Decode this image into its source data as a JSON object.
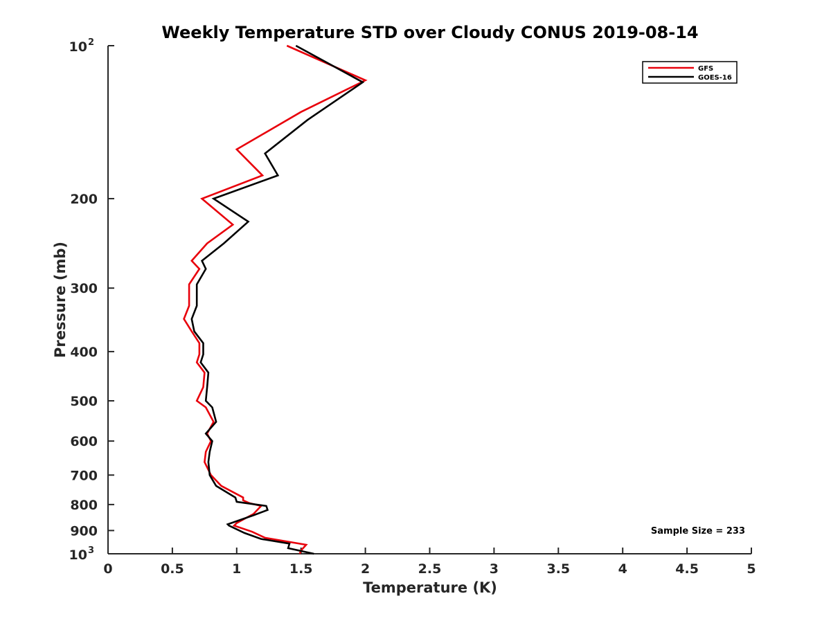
{
  "chart_data": {
    "type": "line",
    "title": "Weekly Temperature STD over Cloudy CONUS 2019-08-14",
    "xlabel": "Temperature (K)",
    "ylabel": "Pressure (mb)",
    "xlim": [
      0,
      5
    ],
    "ylim": [
      100,
      1000
    ],
    "y_scale": "log",
    "y_reversed": true,
    "grid": false,
    "legend_position": "top-right",
    "x_ticks": [
      "0",
      "0.5",
      "1",
      "1.5",
      "2",
      "2.5",
      "3",
      "3.5",
      "4",
      "4.5",
      "5"
    ],
    "y_ticks": [
      {
        "value": 100,
        "base": "10",
        "exp": "2"
      },
      {
        "value": 200,
        "label": "200"
      },
      {
        "value": 300,
        "label": "300"
      },
      {
        "value": 400,
        "label": "400"
      },
      {
        "value": 500,
        "label": "500"
      },
      {
        "value": 600,
        "label": "600"
      },
      {
        "value": 700,
        "label": "700"
      },
      {
        "value": 800,
        "label": "800"
      },
      {
        "value": 900,
        "label": "900"
      },
      {
        "value": 1000,
        "base": "10",
        "exp": "3"
      }
    ],
    "annotation": "Sample Size = 233",
    "series": [
      {
        "name": "GFS",
        "color": "#e8000b",
        "points": [
          [
            1.39,
            100
          ],
          [
            2.0,
            117
          ],
          [
            1.5,
            135
          ],
          [
            1.0,
            160
          ],
          [
            1.2,
            180
          ],
          [
            0.73,
            200
          ],
          [
            0.97,
            225
          ],
          [
            0.77,
            245
          ],
          [
            0.65,
            265
          ],
          [
            0.71,
            275
          ],
          [
            0.63,
            295
          ],
          [
            0.63,
            325
          ],
          [
            0.59,
            345
          ],
          [
            0.65,
            365
          ],
          [
            0.71,
            385
          ],
          [
            0.71,
            405
          ],
          [
            0.69,
            420
          ],
          [
            0.75,
            440
          ],
          [
            0.74,
            470
          ],
          [
            0.69,
            500
          ],
          [
            0.76,
            515
          ],
          [
            0.82,
            550
          ],
          [
            0.77,
            580
          ],
          [
            0.8,
            600
          ],
          [
            0.76,
            630
          ],
          [
            0.75,
            660
          ],
          [
            0.8,
            700
          ],
          [
            0.88,
            735
          ],
          [
            1.05,
            775
          ],
          [
            1.05,
            785
          ],
          [
            1.1,
            795
          ],
          [
            1.19,
            805
          ],
          [
            1.13,
            835
          ],
          [
            1.0,
            870
          ],
          [
            0.98,
            880
          ],
          [
            1.12,
            905
          ],
          [
            1.22,
            930
          ],
          [
            1.54,
            960
          ],
          [
            1.5,
            985
          ],
          [
            1.49,
            1000
          ]
        ]
      },
      {
        "name": "GOES-16",
        "color": "#000000",
        "points": [
          [
            1.46,
            100
          ],
          [
            1.98,
            118
          ],
          [
            1.55,
            140
          ],
          [
            1.22,
            163
          ],
          [
            1.32,
            180
          ],
          [
            0.82,
            200
          ],
          [
            1.09,
            222
          ],
          [
            0.9,
            245
          ],
          [
            0.73,
            265
          ],
          [
            0.76,
            275
          ],
          [
            0.69,
            295
          ],
          [
            0.69,
            325
          ],
          [
            0.65,
            345
          ],
          [
            0.67,
            365
          ],
          [
            0.74,
            385
          ],
          [
            0.74,
            405
          ],
          [
            0.72,
            420
          ],
          [
            0.78,
            440
          ],
          [
            0.77,
            470
          ],
          [
            0.76,
            500
          ],
          [
            0.81,
            515
          ],
          [
            0.84,
            550
          ],
          [
            0.76,
            580
          ],
          [
            0.81,
            600
          ],
          [
            0.79,
            630
          ],
          [
            0.78,
            660
          ],
          [
            0.79,
            700
          ],
          [
            0.84,
            735
          ],
          [
            0.99,
            775
          ],
          [
            1.0,
            790
          ],
          [
            1.23,
            805
          ],
          [
            1.24,
            820
          ],
          [
            1.13,
            840
          ],
          [
            0.93,
            875
          ],
          [
            0.94,
            880
          ],
          [
            1.06,
            910
          ],
          [
            1.19,
            935
          ],
          [
            1.41,
            955
          ],
          [
            1.4,
            975
          ],
          [
            1.6,
            1000
          ]
        ]
      }
    ]
  }
}
